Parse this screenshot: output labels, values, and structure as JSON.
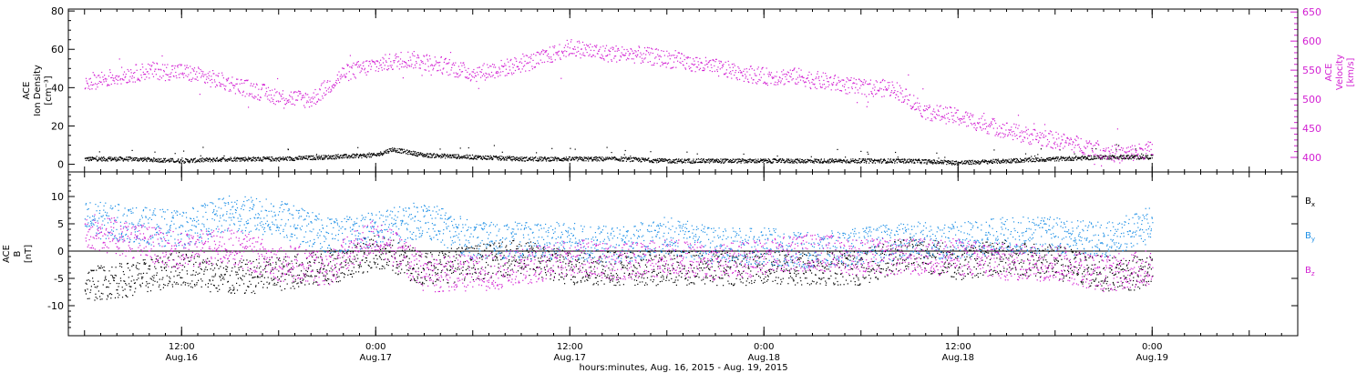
{
  "chart_data": [
    {
      "type": "scatter",
      "panel": "top",
      "ylabel_left": [
        "ACE",
        "Ion Density",
        "[cm⁻³]"
      ],
      "ylabel_right": [
        "ACE",
        "Velocity",
        "[km/s]"
      ],
      "ylim_left": [
        -4,
        81
      ],
      "ylim_right": [
        375,
        655
      ],
      "yticks_left": [
        0,
        20,
        40,
        60,
        80
      ],
      "yticks_right": [
        400,
        450,
        500,
        550,
        600,
        650
      ],
      "colors": {
        "density": "#000000",
        "velocity": "#d21fd2"
      },
      "series": [
        {
          "name": "Ion Density",
          "axis": "left",
          "points": [
            [
              "2015-08-16 06:00",
              3
            ],
            [
              "2015-08-16 09:00",
              3
            ],
            [
              "2015-08-16 12:00",
              2
            ],
            [
              "2015-08-16 15:00",
              3
            ],
            [
              "2015-08-16 18:00",
              3
            ],
            [
              "2015-08-16 21:00",
              4
            ],
            [
              "2015-08-17 00:00",
              5
            ],
            [
              "2015-08-17 01:00",
              8
            ],
            [
              "2015-08-17 03:00",
              5
            ],
            [
              "2015-08-17 06:00",
              4
            ],
            [
              "2015-08-17 09:00",
              3
            ],
            [
              "2015-08-17 12:00",
              3
            ],
            [
              "2015-08-17 15:00",
              3
            ],
            [
              "2015-08-17 18:00",
              2
            ],
            [
              "2015-08-17 21:00",
              2
            ],
            [
              "2015-08-18 00:00",
              2
            ],
            [
              "2015-08-18 03:00",
              2
            ],
            [
              "2015-08-18 06:00",
              2
            ],
            [
              "2015-08-18 09:00",
              2
            ],
            [
              "2015-08-18 12:00",
              1
            ],
            [
              "2015-08-18 15:00",
              2
            ],
            [
              "2015-08-18 18:00",
              3
            ],
            [
              "2015-08-18 21:00",
              4
            ],
            [
              "2015-08-19 00:00",
              4
            ]
          ]
        },
        {
          "name": "Velocity",
          "axis": "right",
          "points": [
            [
              "2015-08-16 06:00",
              530
            ],
            [
              "2015-08-16 08:00",
              540
            ],
            [
              "2015-08-16 10:00",
              550
            ],
            [
              "2015-08-16 12:00",
              548
            ],
            [
              "2015-08-16 14:00",
              535
            ],
            [
              "2015-08-16 16:00",
              520
            ],
            [
              "2015-08-16 18:00",
              505
            ],
            [
              "2015-08-16 20:00",
              500
            ],
            [
              "2015-08-16 22:00",
              545
            ],
            [
              "2015-08-17 00:00",
              560
            ],
            [
              "2015-08-17 02:00",
              570
            ],
            [
              "2015-08-17 04:00",
              560
            ],
            [
              "2015-08-17 06:00",
              545
            ],
            [
              "2015-08-17 08:00",
              555
            ],
            [
              "2015-08-17 10:00",
              568
            ],
            [
              "2015-08-17 12:00",
              590
            ],
            [
              "2015-08-17 14:00",
              580
            ],
            [
              "2015-08-17 16:00",
              578
            ],
            [
              "2015-08-17 18:00",
              570
            ],
            [
              "2015-08-17 20:00",
              560
            ],
            [
              "2015-08-17 22:00",
              550
            ],
            [
              "2015-08-18 00:00",
              540
            ],
            [
              "2015-08-18 02:00",
              540
            ],
            [
              "2015-08-18 04:00",
              530
            ],
            [
              "2015-08-18 06:00",
              520
            ],
            [
              "2015-08-18 08:00",
              520
            ],
            [
              "2015-08-18 10:00",
              480
            ],
            [
              "2015-08-18 12:00",
              470
            ],
            [
              "2015-08-18 14:00",
              455
            ],
            [
              "2015-08-18 16:00",
              440
            ],
            [
              "2015-08-18 18:00",
              430
            ],
            [
              "2015-08-18 20:00",
              420
            ],
            [
              "2015-08-18 22:00",
              405
            ],
            [
              "2015-08-19 00:00",
              415
            ]
          ]
        }
      ]
    },
    {
      "type": "scatter",
      "panel": "bottom",
      "ylabel": [
        "ACE",
        "B",
        "[nT]"
      ],
      "ylim": [
        -15.5,
        14.5
      ],
      "yticks": [
        -10,
        -5,
        0,
        5,
        10
      ],
      "zero_line": true,
      "colors": {
        "Bx": "#000000",
        "By": "#1e90e6",
        "Bz": "#d21fd2"
      },
      "series": [
        {
          "name": "Bx",
          "points": [
            [
              "2015-08-16 06:00",
              -6
            ],
            [
              "2015-08-16 09:00",
              -5
            ],
            [
              "2015-08-16 12:00",
              -3
            ],
            [
              "2015-08-16 15:00",
              -5
            ],
            [
              "2015-08-16 18:00",
              -4
            ],
            [
              "2015-08-16 21:00",
              -3
            ],
            [
              "2015-08-17 00:00",
              0
            ],
            [
              "2015-08-17 03:00",
              -3
            ],
            [
              "2015-08-17 06:00",
              -2
            ],
            [
              "2015-08-17 09:00",
              -1
            ],
            [
              "2015-08-17 12:00",
              -3
            ],
            [
              "2015-08-17 15:00",
              -3
            ],
            [
              "2015-08-17 18:00",
              -3
            ],
            [
              "2015-08-17 21:00",
              -3
            ],
            [
              "2015-08-18 00:00",
              -3
            ],
            [
              "2015-08-18 03:00",
              -3
            ],
            [
              "2015-08-18 06:00",
              -3
            ],
            [
              "2015-08-18 09:00",
              0
            ],
            [
              "2015-08-18 12:00",
              -2
            ],
            [
              "2015-08-18 15:00",
              -1
            ],
            [
              "2015-08-18 18:00",
              -2
            ],
            [
              "2015-08-18 21:00",
              -4
            ],
            [
              "2015-08-19 00:00",
              -4
            ]
          ]
        },
        {
          "name": "By",
          "points": [
            [
              "2015-08-16 06:00",
              6
            ],
            [
              "2015-08-16 09:00",
              5
            ],
            [
              "2015-08-16 12:00",
              4
            ],
            [
              "2015-08-16 15:00",
              7
            ],
            [
              "2015-08-16 18:00",
              6
            ],
            [
              "2015-08-16 21:00",
              3
            ],
            [
              "2015-08-17 00:00",
              4
            ],
            [
              "2015-08-17 03:00",
              6
            ],
            [
              "2015-08-17 06:00",
              2
            ],
            [
              "2015-08-17 09:00",
              2
            ],
            [
              "2015-08-17 12:00",
              2
            ],
            [
              "2015-08-17 15:00",
              1
            ],
            [
              "2015-08-17 18:00",
              3
            ],
            [
              "2015-08-17 21:00",
              1
            ],
            [
              "2015-08-18 00:00",
              1
            ],
            [
              "2015-08-18 03:00",
              0
            ],
            [
              "2015-08-18 06:00",
              1
            ],
            [
              "2015-08-18 09:00",
              2
            ],
            [
              "2015-08-18 12:00",
              2
            ],
            [
              "2015-08-18 15:00",
              3
            ],
            [
              "2015-08-18 18:00",
              3
            ],
            [
              "2015-08-18 21:00",
              2
            ],
            [
              "2015-08-19 00:00",
              5
            ]
          ]
        },
        {
          "name": "Bz",
          "points": [
            [
              "2015-08-16 06:00",
              4
            ],
            [
              "2015-08-16 09:00",
              2
            ],
            [
              "2015-08-16 12:00",
              0
            ],
            [
              "2015-08-16 15:00",
              1
            ],
            [
              "2015-08-16 18:00",
              -2
            ],
            [
              "2015-08-16 21:00",
              -3
            ],
            [
              "2015-08-17 00:00",
              3
            ],
            [
              "2015-08-17 03:00",
              -4
            ],
            [
              "2015-08-17 06:00",
              -4
            ],
            [
              "2015-08-17 09:00",
              -3
            ],
            [
              "2015-08-17 12:00",
              -1
            ],
            [
              "2015-08-17 15:00",
              -2
            ],
            [
              "2015-08-17 18:00",
              -1
            ],
            [
              "2015-08-17 21:00",
              -2
            ],
            [
              "2015-08-18 00:00",
              -1
            ],
            [
              "2015-08-18 03:00",
              0
            ],
            [
              "2015-08-18 06:00",
              -1
            ],
            [
              "2015-08-18 09:00",
              -1
            ],
            [
              "2015-08-18 12:00",
              -1
            ],
            [
              "2015-08-18 15:00",
              -2
            ],
            [
              "2015-08-18 18:00",
              -2
            ],
            [
              "2015-08-18 21:00",
              -4
            ],
            [
              "2015-08-19 00:00",
              -3
            ]
          ]
        }
      ]
    }
  ],
  "legend": [
    {
      "base": "B",
      "sub": "x",
      "color": "#000000"
    },
    {
      "base": "B",
      "sub": "y",
      "color": "#1e90e6"
    },
    {
      "base": "B",
      "sub": "z",
      "color": "#d21fd2"
    }
  ],
  "x_axis": {
    "xlim": [
      "2015-08-16 05:00",
      "2015-08-19 09:00"
    ],
    "ticks": [
      {
        "t": "2015-08-16 12:00",
        "time": "12:00",
        "date": "Aug.16"
      },
      {
        "t": "2015-08-17 00:00",
        "time": "0:00",
        "date": "Aug.17"
      },
      {
        "t": "2015-08-17 12:00",
        "time": "12:00",
        "date": "Aug.17"
      },
      {
        "t": "2015-08-18 00:00",
        "time": "0:00",
        "date": "Aug.18"
      },
      {
        "t": "2015-08-18 12:00",
        "time": "12:00",
        "date": "Aug.18"
      },
      {
        "t": "2015-08-19 00:00",
        "time": "0:00",
        "date": "Aug.19"
      }
    ],
    "title": "hours:minutes, Aug. 16, 2015 - Aug. 19, 2015"
  }
}
